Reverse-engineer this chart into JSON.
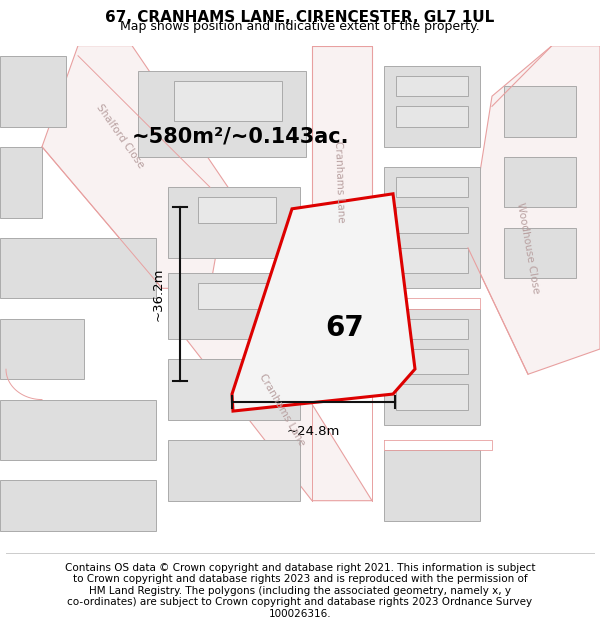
{
  "title": "67, CRANHAMS LANE, CIRENCESTER, GL7 1UL",
  "subtitle": "Map shows position and indicative extent of the property.",
  "area_text": "~580m²/~0.143ac.",
  "dim_width": "~24.8m",
  "dim_height": "~36.2m",
  "plot_label": "67",
  "footer_lines": [
    "Contains OS data © Crown copyright and database right 2021. This information is subject",
    "to Crown copyright and database rights 2023 and is reproduced with the permission of",
    "HM Land Registry. The polygons (including the associated geometry, namely x, y",
    "co-ordinates) are subject to Crown copyright and database rights 2023 Ordnance Survey",
    "100026316."
  ],
  "map_bg": "#ffffff",
  "road_outline_color": "#e8a0a0",
  "road_fill_color": "#f5e8e8",
  "building_fill": "#dedede",
  "building_stroke": "#aaaaaa",
  "plot_stroke": "#dd0000",
  "plot_fill": "#f0f0f0",
  "street_label_color": "#b8a0a0",
  "dim_line_color": "#111111",
  "title_fontsize": 11,
  "subtitle_fontsize": 9,
  "footer_fontsize": 7.5,
  "area_fontsize": 15,
  "plot_label_fontsize": 20
}
